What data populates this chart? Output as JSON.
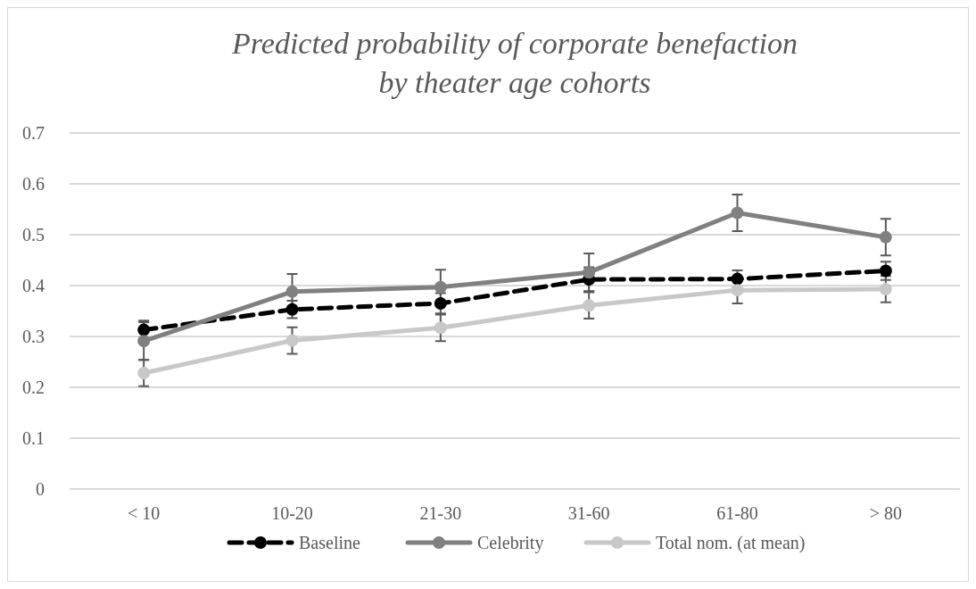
{
  "chart_data": {
    "type": "line",
    "title": "Predicted probability of corporate benefaction\nby theater age cohorts",
    "categories": [
      "< 10",
      "10-20",
      "21-30",
      "31-60",
      "61-80",
      "> 80"
    ],
    "series": [
      {
        "name": "Baseline",
        "color": "#000000",
        "line_style": "dashed",
        "values": [
          0.313,
          0.353,
          0.365,
          0.412,
          0.413,
          0.429
        ],
        "errors": [
          0.018,
          0.017,
          0.02,
          0.024,
          0.017,
          0.018
        ]
      },
      {
        "name": "Celebrity",
        "color": "#808080",
        "values": [
          0.291,
          0.388,
          0.397,
          0.426,
          0.543,
          0.495
        ],
        "errors": [
          0.037,
          0.035,
          0.034,
          0.037,
          0.036,
          0.036
        ]
      },
      {
        "name": "Total nom. (at mean)",
        "color": "#c8c8c8",
        "values": [
          0.228,
          0.292,
          0.317,
          0.361,
          0.391,
          0.393
        ],
        "errors": [
          0.026,
          0.026,
          0.026,
          0.026,
          0.026,
          0.026
        ]
      }
    ],
    "ylim": [
      0,
      0.7
    ],
    "yticks": [
      0,
      0.1,
      0.2,
      0.3,
      0.4,
      0.5,
      0.6,
      0.7
    ],
    "grid": "y",
    "legend": "bottom",
    "marker": "circle"
  }
}
